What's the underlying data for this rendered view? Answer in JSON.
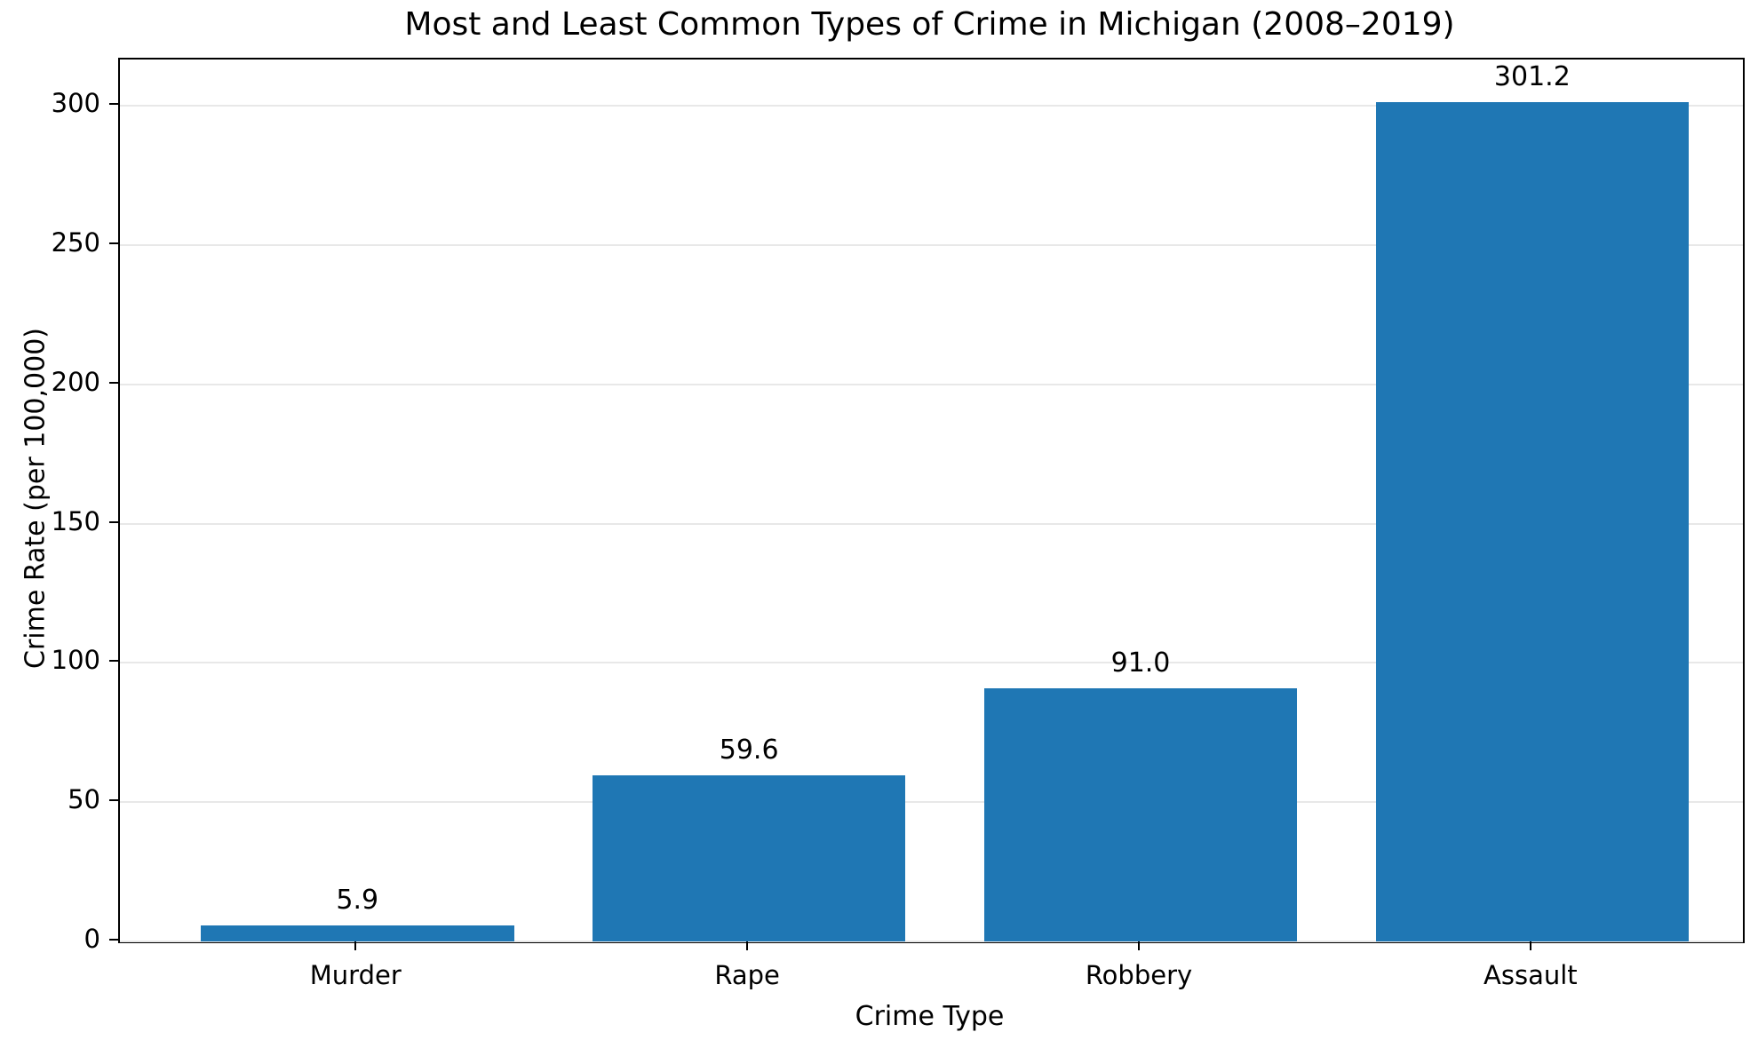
{
  "chart_data": {
    "type": "bar",
    "title": "Most and Least Common Types of Crime in Michigan (2008–2019)",
    "xlabel": "Crime Type",
    "ylabel": "Crime Rate (per 100,000)",
    "categories": [
      "Murder",
      "Rape",
      "Robbery",
      "Assault"
    ],
    "values": [
      5.9,
      59.6,
      91.0,
      301.2
    ],
    "value_labels": [
      "5.9",
      "59.6",
      "91.0",
      "301.2"
    ],
    "yticks": [
      0,
      50,
      100,
      150,
      200,
      250,
      300
    ],
    "ylim": [
      0,
      316.6
    ],
    "bar_color": "#1f77b4",
    "grid": "horizontal",
    "grid_color": "#e8e8e8",
    "legend": null
  }
}
